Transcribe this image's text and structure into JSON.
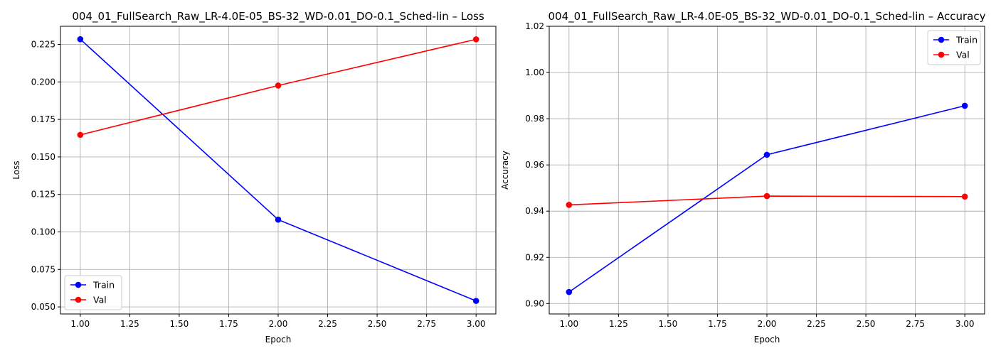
{
  "chart_data": [
    {
      "type": "line",
      "title": "004_01_FullSearch_Raw_LR-4.0E-05_BS-32_WD-0.01_DO-0.1_Sched-lin – Loss",
      "xlabel": "Epoch",
      "ylabel": "Loss",
      "x": [
        1.0,
        2.0,
        3.0
      ],
      "xlim": [
        0.9,
        3.1
      ],
      "ylim": [
        0.0453,
        0.2371
      ],
      "xticks": [
        "1.00",
        "1.25",
        "1.50",
        "1.75",
        "2.00",
        "2.25",
        "2.50",
        "2.75",
        "3.00"
      ],
      "yticks": [
        "0.050",
        "0.075",
        "0.100",
        "0.125",
        "0.150",
        "0.175",
        "0.200",
        "0.225"
      ],
      "grid": true,
      "legend": "lower left",
      "series": [
        {
          "name": "Train",
          "color": "#0000ff",
          "marker": "circle",
          "values": [
            0.2285,
            0.1082,
            0.054
          ]
        },
        {
          "name": "Val",
          "color": "#ff0000",
          "marker": "circle",
          "values": [
            0.1647,
            0.1976,
            0.2284
          ]
        }
      ]
    },
    {
      "type": "line",
      "title": "004_01_FullSearch_Raw_LR-4.0E-05_BS-32_WD-0.01_DO-0.1_Sched-lin – Accuracy",
      "xlabel": "Epoch",
      "ylabel": "Accuracy",
      "x": [
        1.0,
        2.0,
        3.0
      ],
      "xlim": [
        0.9,
        3.1
      ],
      "ylim": [
        0.8955,
        1.02
      ],
      "xticks": [
        "1.00",
        "1.25",
        "1.50",
        "1.75",
        "2.00",
        "2.25",
        "2.50",
        "2.75",
        "3.00"
      ],
      "yticks": [
        "0.90",
        "0.92",
        "0.94",
        "0.96",
        "0.98",
        "1.00",
        "1.02"
      ],
      "grid": true,
      "legend": "upper right",
      "series": [
        {
          "name": "Train",
          "color": "#0000ff",
          "marker": "circle",
          "values": [
            0.905,
            0.9644,
            0.9856
          ]
        },
        {
          "name": "Val",
          "color": "#ff0000",
          "marker": "circle",
          "values": [
            0.9427,
            0.9465,
            0.9463
          ]
        }
      ]
    }
  ]
}
